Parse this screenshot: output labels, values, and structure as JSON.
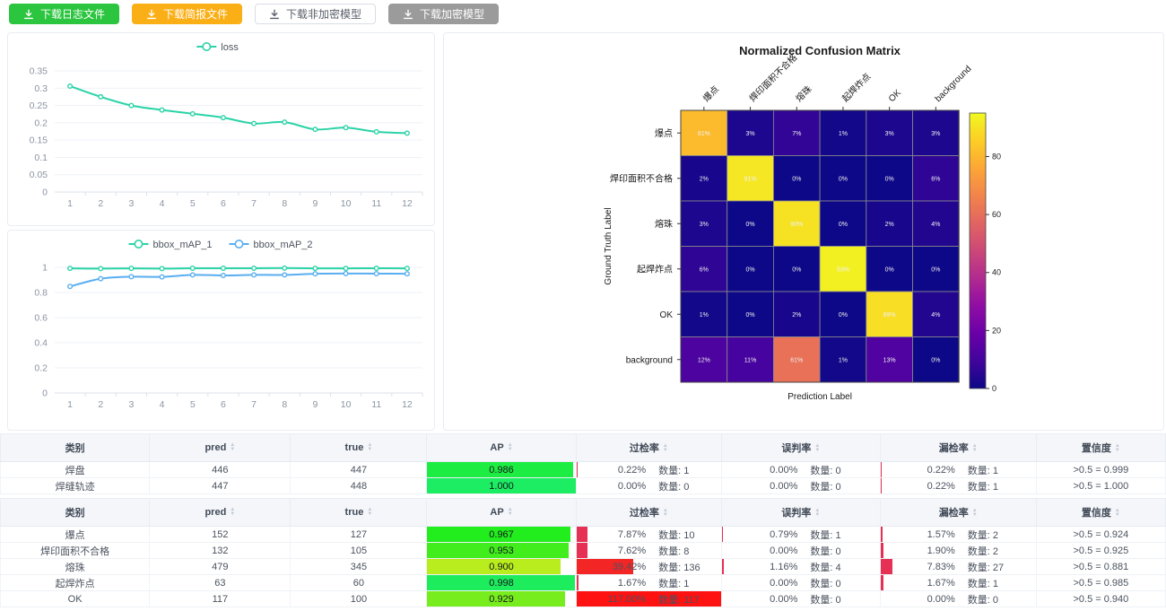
{
  "toolbar": {
    "buttons": [
      {
        "label": "下载日志文件",
        "bg": "#2bc53f",
        "fg": "#ffffff",
        "border": "#2bc53f"
      },
      {
        "label": "下载简报文件",
        "bg": "#fbaf17",
        "fg": "#ffffff",
        "border": "#fbaf17"
      },
      {
        "label": "下载非加密模型",
        "bg": "#ffffff",
        "fg": "#595f69",
        "border": "#d9dde3"
      },
      {
        "label": "下载加密模型",
        "bg": "#9b9b9b",
        "fg": "#ffffff",
        "border": "#9b9b9b"
      }
    ]
  },
  "chart_data": [
    {
      "id": "loss",
      "type": "line",
      "x": [
        1,
        2,
        3,
        4,
        5,
        6,
        7,
        8,
        9,
        10,
        11,
        12
      ],
      "series": [
        {
          "name": "loss",
          "color": "#2bd3a7",
          "values": [
            0.306,
            0.275,
            0.25,
            0.237,
            0.226,
            0.215,
            0.198,
            0.202,
            0.181,
            0.186,
            0.174,
            0.17
          ]
        }
      ],
      "ylim": [
        0,
        0.35
      ],
      "yticks": [
        0,
        0.05,
        0.1,
        0.15,
        0.2,
        0.25,
        0.3,
        0.35
      ],
      "ytick_labels": [
        "0",
        "0.05",
        "0.1",
        "0.15",
        "0.2",
        "0.25",
        "0.3",
        "0.35"
      ],
      "legend_position": "top",
      "grid": true
    },
    {
      "id": "map",
      "type": "line",
      "x": [
        1,
        2,
        3,
        4,
        5,
        6,
        7,
        8,
        9,
        10,
        11,
        12
      ],
      "series": [
        {
          "name": "bbox_mAP_1",
          "color": "#2bd3a7",
          "values": [
            0.992,
            0.99,
            0.992,
            0.99,
            0.993,
            0.993,
            0.993,
            0.994,
            0.992,
            0.992,
            0.993,
            0.992
          ]
        },
        {
          "name": "bbox_mAP_2",
          "color": "#59aef0",
          "values": [
            0.848,
            0.91,
            0.926,
            0.924,
            0.94,
            0.936,
            0.94,
            0.94,
            0.949,
            0.951,
            0.95,
            0.949
          ]
        }
      ],
      "ylim": [
        0,
        1
      ],
      "yticks": [
        0,
        0.2,
        0.4,
        0.6,
        0.8,
        1
      ],
      "ytick_labels": [
        "0",
        "0.2",
        "0.4",
        "0.6",
        "0.8",
        "1"
      ],
      "legend_position": "top",
      "grid": true
    },
    {
      "id": "confusion",
      "type": "heatmap",
      "title": "Normalized Confusion Matrix",
      "xlabel": "Prediction Label",
      "ylabel": "Ground Truth Label",
      "labels": [
        "爆点",
        "焊印面积不合格",
        "熔珠",
        "起焊炸点",
        "OK",
        "background"
      ],
      "matrix": [
        [
          81,
          3,
          7,
          1,
          3,
          3
        ],
        [
          2,
          91,
          0,
          0,
          0,
          6
        ],
        [
          3,
          0,
          90,
          0,
          2,
          4
        ],
        [
          6,
          0,
          0,
          93,
          0,
          0
        ],
        [
          1,
          0,
          2,
          0,
          89,
          4
        ],
        [
          12,
          11,
          61,
          1,
          13,
          0
        ]
      ],
      "cell_suffix": "%",
      "vmax": 95,
      "colormap": "plasma",
      "colorbar_ticks": [
        0,
        20,
        40,
        60,
        80
      ],
      "legend_position": "right-colorbar"
    }
  ],
  "tables": {
    "count_label": "数量:",
    "headers": [
      {
        "id": "category",
        "label": "类别",
        "sortable": false
      },
      {
        "id": "pred",
        "label": "pred",
        "sortable": true
      },
      {
        "id": "true",
        "label": "true",
        "sortable": true
      },
      {
        "id": "ap",
        "label": "AP",
        "sortable": true
      },
      {
        "id": "over",
        "label": "过检率",
        "sortable": true
      },
      {
        "id": "mis",
        "label": "误判率",
        "sortable": true
      },
      {
        "id": "miss",
        "label": "漏检率",
        "sortable": true
      },
      {
        "id": "confidence",
        "label": "置信度",
        "sortable": true
      }
    ],
    "list": [
      {
        "rows": [
          {
            "category": "焊盘",
            "pred": "446",
            "true": "447",
            "ap": {
              "text": "0.986",
              "value": 0.986
            },
            "over": {
              "rate": "0.22%",
              "value": 0.22,
              "count": "1"
            },
            "mis": {
              "rate": "0.00%",
              "value": 0.0,
              "count": "0"
            },
            "miss": {
              "rate": "0.22%",
              "value": 0.22,
              "count": "1"
            },
            "confidence": ">0.5 = 0.999"
          },
          {
            "category": "焊缝轨迹",
            "pred": "447",
            "true": "448",
            "ap": {
              "text": "1.000",
              "value": 1.0
            },
            "over": {
              "rate": "0.00%",
              "value": 0.0,
              "count": "0"
            },
            "mis": {
              "rate": "0.00%",
              "value": 0.0,
              "count": "0"
            },
            "miss": {
              "rate": "0.22%",
              "value": 0.22,
              "count": "1"
            },
            "confidence": ">0.5 = 1.000"
          }
        ]
      },
      {
        "rows": [
          {
            "category": "爆点",
            "pred": "152",
            "true": "127",
            "ap": {
              "text": "0.967",
              "value": 0.967
            },
            "over": {
              "rate": "7.87%",
              "value": 7.87,
              "count": "10"
            },
            "mis": {
              "rate": "0.79%",
              "value": 0.79,
              "count": "1"
            },
            "miss": {
              "rate": "1.57%",
              "value": 1.57,
              "count": "2"
            },
            "confidence": ">0.5 = 0.924"
          },
          {
            "category": "焊印面积不合格",
            "pred": "132",
            "true": "105",
            "ap": {
              "text": "0.953",
              "value": 0.953
            },
            "over": {
              "rate": "7.62%",
              "value": 7.62,
              "count": "8"
            },
            "mis": {
              "rate": "0.00%",
              "value": 0.0,
              "count": "0"
            },
            "miss": {
              "rate": "1.90%",
              "value": 1.9,
              "count": "2"
            },
            "confidence": ">0.5 = 0.925"
          },
          {
            "category": "熔珠",
            "pred": "479",
            "true": "345",
            "ap": {
              "text": "0.900",
              "value": 0.9
            },
            "over": {
              "rate": "39.42%",
              "value": 39.42,
              "count": "136"
            },
            "mis": {
              "rate": "1.16%",
              "value": 1.16,
              "count": "4"
            },
            "miss": {
              "rate": "7.83%",
              "value": 7.83,
              "count": "27"
            },
            "confidence": ">0.5 = 0.881"
          },
          {
            "category": "起焊炸点",
            "pred": "63",
            "true": "60",
            "ap": {
              "text": "0.998",
              "value": 0.998
            },
            "over": {
              "rate": "1.67%",
              "value": 1.67,
              "count": "1"
            },
            "mis": {
              "rate": "0.00%",
              "value": 0.0,
              "count": "0"
            },
            "miss": {
              "rate": "1.67%",
              "value": 1.67,
              "count": "1"
            },
            "confidence": ">0.5 = 0.985"
          },
          {
            "category": "OK",
            "pred": "117",
            "true": "100",
            "ap": {
              "text": "0.929",
              "value": 0.929
            },
            "over": {
              "rate": "117.00%",
              "value": 117.0,
              "count": "117"
            },
            "mis": {
              "rate": "0.00%",
              "value": 0.0,
              "count": "0"
            },
            "miss": {
              "rate": "0.00%",
              "value": 0.0,
              "count": "0"
            },
            "confidence": ">0.5 = 0.940"
          }
        ]
      }
    ]
  },
  "colors": {
    "grid_line": "#edf1f7",
    "axis_text": "#8a94a2",
    "rate_bar_small": "#e63054",
    "rate_bar_big": "#f42525",
    "rate_bar_full": "#ff1212"
  }
}
